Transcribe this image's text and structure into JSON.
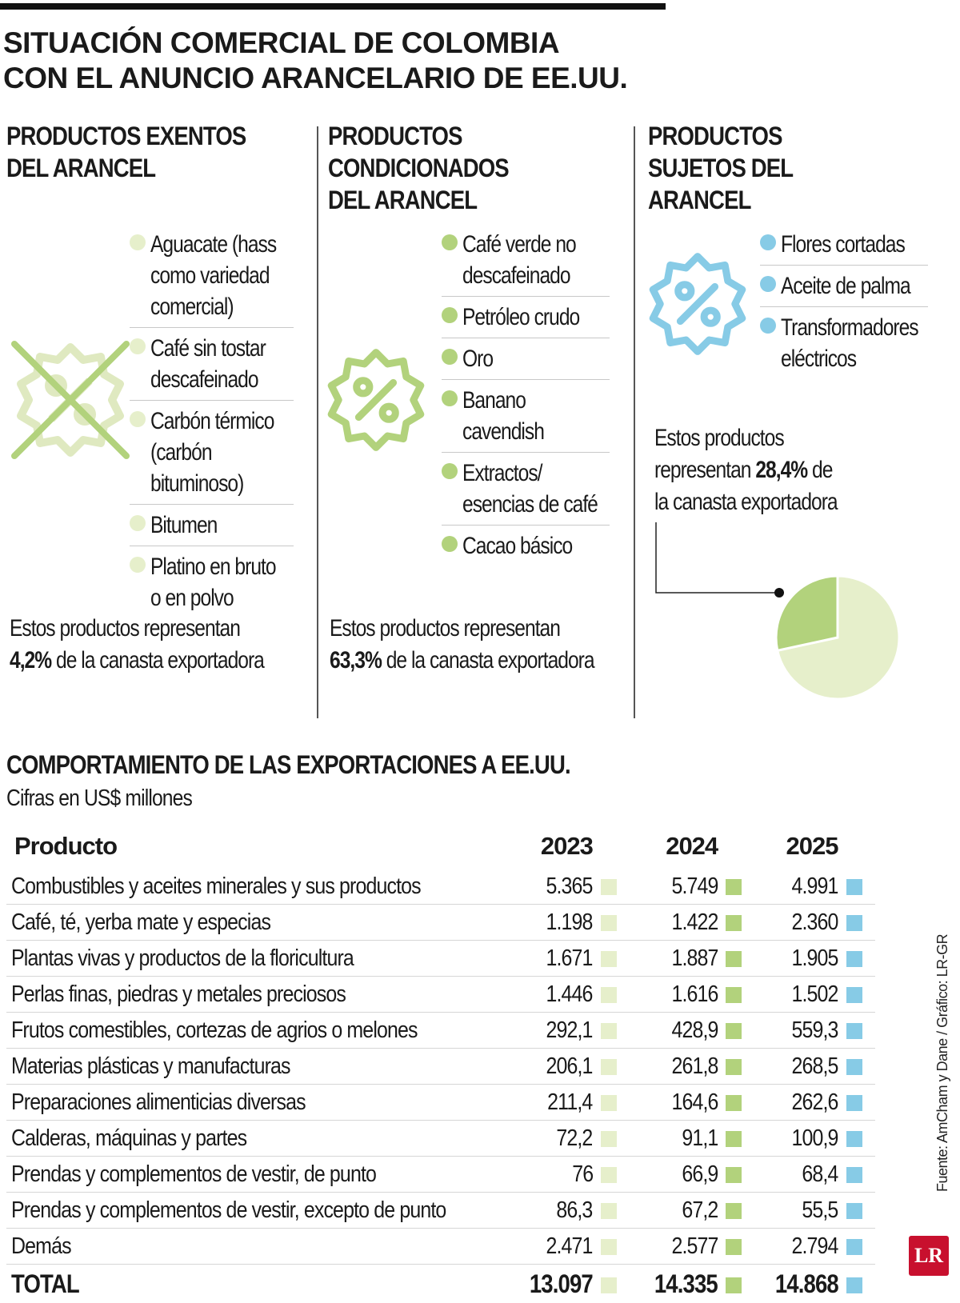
{
  "title_lines": [
    "SITUACIÓN COMERCIAL DE COLOMBIA",
    "CON EL ANUNCIO ARANCELARIO DE EE.UU."
  ],
  "colors": {
    "light_green": "#e6efcb",
    "green": "#b2d27c",
    "blue": "#87cbe6",
    "pie_light": "#e6efcb",
    "pie_dark": "#b2d27c"
  },
  "columns": [
    {
      "title_lines": [
        "PRODUCTOS EXENTOS",
        "DEL ARANCEL"
      ],
      "icon": "crossed-out-percent-badge-icon",
      "items": [
        [
          "Aguacate (hass",
          "como variedad",
          "comercial)"
        ],
        [
          "Café sin tostar",
          "descafeinado"
        ],
        [
          "Carbón térmico",
          "(carbón",
          "bituminoso)"
        ],
        [
          "Bitumen"
        ],
        [
          "Platino en bruto",
          "o en polvo"
        ]
      ],
      "note_prefix": "Estos productos representan",
      "note_value": "4,2%",
      "note_suffix": "de la canasta exportadora"
    },
    {
      "title_lines": [
        "PRODUCTOS",
        "CONDICIONADOS",
        "DEL ARANCEL"
      ],
      "icon": "percent-badge-icon",
      "items": [
        [
          "Café verde no",
          "descafeinado"
        ],
        [
          "Petróleo crudo"
        ],
        [
          "Oro"
        ],
        [
          "Banano",
          "cavendish"
        ],
        [
          "Extractos/",
          "esencias de café"
        ],
        [
          "Cacao básico"
        ]
      ],
      "note_prefix": "Estos productos representan",
      "note_value": "63,3%",
      "note_suffix": "de la canasta exportadora"
    },
    {
      "title_lines": [
        "PRODUCTOS",
        "SUJETOS DEL",
        "ARANCEL"
      ],
      "icon": "percent-badge-icon",
      "items": [
        [
          "Flores cortadas"
        ],
        [
          "Aceite de palma"
        ],
        [
          "Transformadores",
          "eléctricos"
        ]
      ],
      "note_line1": "Estos productos",
      "note_prefix": "representan",
      "note_value": "28,4%",
      "note_suffix": "de",
      "note_line3": "la canasta exportadora"
    }
  ],
  "chart_data": [
    {
      "type": "pie",
      "values": [
        28.4,
        71.6
      ],
      "highlighted_index": 0,
      "colors": [
        "#b2d27c",
        "#e6efcb"
      ]
    },
    {
      "type": "table",
      "title": "COMPORTAMIENTO DE LAS EXPORTACIONES A EE.UU.",
      "subtitle": "Cifras en US$ millones",
      "columns": [
        "Producto",
        "2023",
        "2024",
        "2025"
      ],
      "column_colors": [
        "#e6efcb",
        "#b2d27c",
        "#87cbe6"
      ],
      "rows": [
        [
          "Combustibles y aceites minerales y sus productos",
          "5.365",
          "5.749",
          "4.991"
        ],
        [
          "Café, té, yerba mate y especias",
          "1.198",
          "1.422",
          "2.360"
        ],
        [
          "Plantas vivas y productos de la floricultura",
          "1.671",
          "1.887",
          "1.905"
        ],
        [
          "Perlas finas, piedras y metales preciosos",
          "1.446",
          "1.616",
          "1.502"
        ],
        [
          "Frutos comestibles, cortezas de agrios o melones",
          "292,1",
          "428,9",
          "559,3"
        ],
        [
          "Materias plásticas y manufacturas",
          "206,1",
          "261,8",
          "268,5"
        ],
        [
          "Preparaciones alimenticias diversas",
          "211,4",
          "164,6",
          "262,6"
        ],
        [
          "Calderas, máquinas y partes",
          "72,2",
          "91,1",
          "100,9"
        ],
        [
          "Prendas y complementos de vestir, de punto",
          "76",
          "66,9",
          "68,4"
        ],
        [
          "Prendas y complementos de vestir, excepto de punto",
          "86,3",
          "67,2",
          "55,5"
        ],
        [
          "Demás",
          "2.471",
          "2.577",
          "2.794"
        ]
      ],
      "total": [
        "TOTAL",
        "13.097",
        "14.335",
        "14.868"
      ]
    }
  ],
  "source": "Fuente: AmCham y Dane / Gráfico: LR-GR",
  "logo": "LR"
}
